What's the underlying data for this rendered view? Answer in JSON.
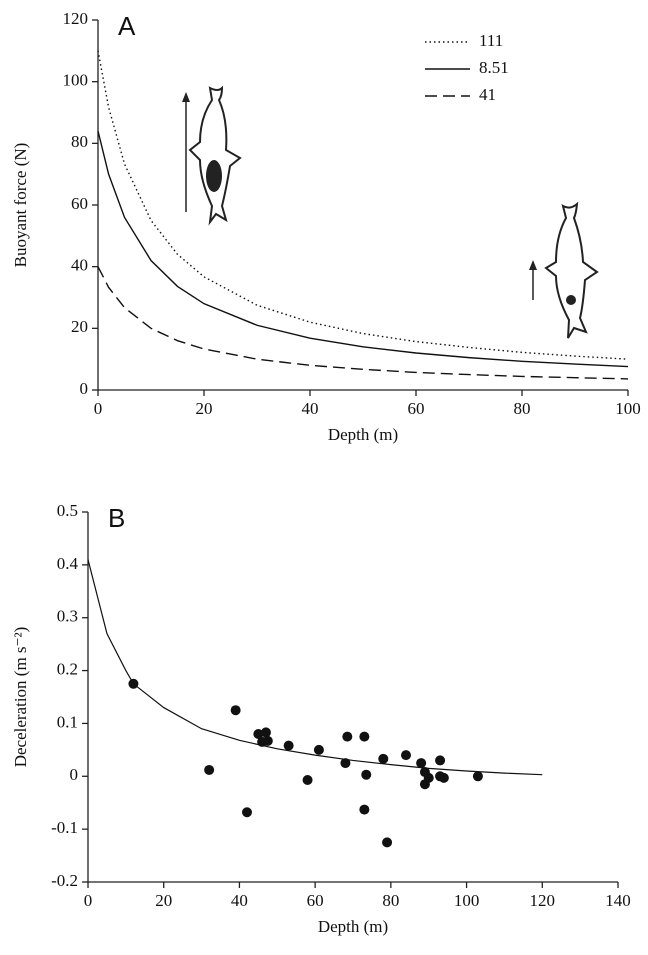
{
  "chart_data": [
    {
      "type": "line",
      "panel_label": "A",
      "xlabel": "Depth (m)",
      "ylabel": "Buoyant force (N)",
      "x": [
        0,
        2,
        5,
        10,
        15,
        20,
        30,
        40,
        50,
        60,
        70,
        80,
        90,
        100
      ],
      "series": [
        {
          "name": "111",
          "color": "#111",
          "dash": "dotted",
          "values": [
            110,
            91.7,
            73.3,
            55,
            44,
            36.7,
            27.5,
            22,
            18.3,
            15.7,
            13.8,
            12.2,
            11,
            10
          ]
        },
        {
          "name": "8.51",
          "color": "#111",
          "dash": "solid",
          "values": [
            84,
            70,
            56,
            42,
            33.6,
            28,
            21,
            16.8,
            14,
            12,
            10.5,
            9.3,
            8.4,
            7.6
          ]
        },
        {
          "name": "41",
          "color": "#111",
          "dash": "dashed",
          "values": [
            40,
            33.3,
            26.7,
            20,
            16,
            13.3,
            10,
            8,
            6.7,
            5.7,
            5,
            4.4,
            4,
            3.6
          ]
        }
      ],
      "legend": "upper right",
      "xlim": [
        0,
        100
      ],
      "xticks": [
        0,
        20,
        40,
        60,
        80,
        100
      ],
      "ylim": [
        0,
        120
      ],
      "yticks": [
        0,
        20,
        40,
        60,
        80,
        100,
        120
      ]
    },
    {
      "type": "scatter",
      "panel_label": "B",
      "xlabel": "Depth (m)",
      "ylabel": "Deceleration (m s⁻²)",
      "series": [
        {
          "type": "scatter",
          "color": "#111",
          "x": [
            12,
            32,
            39,
            42,
            45,
            46,
            47,
            47.5,
            53,
            58,
            61,
            68,
            68.5,
            73,
            73,
            73.5,
            78,
            79,
            84,
            88,
            89,
            89,
            90,
            93,
            93,
            94,
            103
          ],
          "y": [
            0.175,
            0.012,
            0.125,
            -0.068,
            0.08,
            0.065,
            0.083,
            0.067,
            0.058,
            -0.007,
            0.05,
            0.025,
            0.075,
            0.075,
            -0.063,
            0.003,
            0.033,
            -0.125,
            0.04,
            0.025,
            0.008,
            -0.015,
            -0.003,
            0.03,
            0,
            -0.003,
            0
          ]
        },
        {
          "type": "line",
          "color": "#111",
          "x": [
            0,
            5,
            10,
            12,
            20,
            30,
            40,
            50,
            60,
            70,
            80,
            90,
            100,
            110,
            120
          ],
          "y": [
            0.41,
            0.27,
            0.2,
            0.175,
            0.13,
            0.09,
            0.068,
            0.052,
            0.04,
            0.03,
            0.022,
            0.015,
            0.01,
            0.006,
            0.003
          ]
        }
      ],
      "xlim": [
        0,
        140
      ],
      "xticks": [
        0,
        20,
        40,
        60,
        80,
        100,
        120,
        140
      ],
      "ylim": [
        -0.2,
        0.5
      ],
      "yticks": [
        -0.2,
        -0.1,
        0,
        0.1,
        0.2,
        0.3,
        0.4,
        0.5
      ]
    }
  ]
}
